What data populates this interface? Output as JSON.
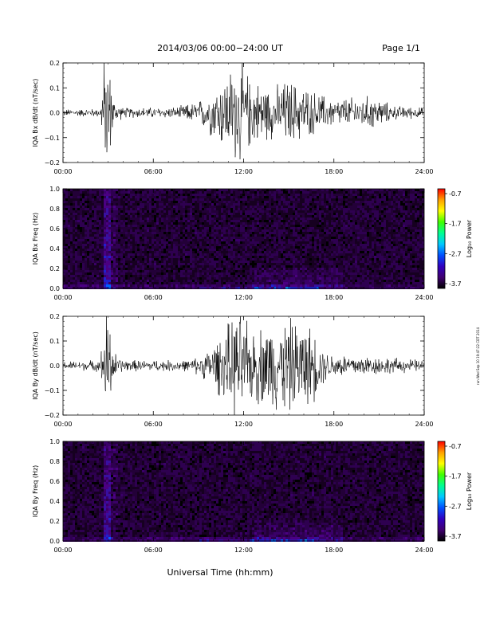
{
  "header": {
    "title": "2014/03/06  00:00−24:00 UT",
    "page": "Page 1/1"
  },
  "footer": {
    "xlabel": "Universal Time (hh:mm)"
  },
  "side_stamp": "run Wed Sep 10 19:47:22 CDT 2014",
  "colorbar": {
    "label": "Log₁₀ Power",
    "ticks": [
      "-0.7",
      "-1.7",
      "-2.7",
      "-3.7"
    ],
    "colors": [
      "#ff0000",
      "#ffa000",
      "#ffff00",
      "#40ff00",
      "#00ff90",
      "#00c8ff",
      "#0050ff",
      "#3000c0",
      "#400070",
      "#000000"
    ]
  },
  "chart_data": [
    {
      "type": "line",
      "ylabel": "IQA Bx dB/dt (nT/sec)",
      "ylim": [
        -0.2,
        0.2
      ],
      "yticks": [
        "0.2",
        "0.1",
        "0.0",
        "−0.1",
        "−0.2"
      ],
      "xlim": [
        "00:00",
        "24:00"
      ],
      "xticks": [
        "00:00",
        "06:00",
        "12:00",
        "18:00",
        "24:00"
      ],
      "series_color": "#000000",
      "envelope": [
        {
          "t": 0,
          "amp": 0.012
        },
        {
          "t": 2.5,
          "amp": 0.015
        },
        {
          "t": 2.7,
          "amp": 0.2
        },
        {
          "t": 3.0,
          "amp": 0.2
        },
        {
          "t": 3.4,
          "amp": 0.04
        },
        {
          "t": 4.0,
          "amp": 0.018
        },
        {
          "t": 7.5,
          "amp": 0.02
        },
        {
          "t": 9.0,
          "amp": 0.04
        },
        {
          "t": 10.0,
          "amp": 0.09
        },
        {
          "t": 10.8,
          "amp": 0.14
        },
        {
          "t": 11.7,
          "amp": 0.19
        },
        {
          "t": 12.5,
          "amp": 0.12
        },
        {
          "t": 14.0,
          "amp": 0.09
        },
        {
          "t": 15.0,
          "amp": 0.12
        },
        {
          "t": 16.5,
          "amp": 0.08
        },
        {
          "t": 18.0,
          "amp": 0.05
        },
        {
          "t": 20.5,
          "amp": 0.06
        },
        {
          "t": 22.0,
          "amp": 0.025
        },
        {
          "t": 24.0,
          "amp": 0.018
        }
      ]
    },
    {
      "type": "heatmap",
      "ylabel": "IQA Bx Freq (Hz)",
      "ylim": [
        0.0,
        1.0
      ],
      "yticks": [
        "1.0",
        "0.8",
        "0.6",
        "0.4",
        "0.2",
        "0.0"
      ],
      "xlim": [
        "00:00",
        "24:00"
      ],
      "xticks": [
        "00:00",
        "06:00",
        "12:00",
        "18:00",
        "24:00"
      ],
      "zlim": [
        -3.7,
        -0.7
      ],
      "zlabel": "Log₁₀ Power"
    },
    {
      "type": "line",
      "ylabel": "IQA By dB/dt (nT/sec)",
      "ylim": [
        -0.2,
        0.2
      ],
      "yticks": [
        "0.2",
        "0.1",
        "0.0",
        "−0.1",
        "−0.2"
      ],
      "xlim": [
        "00:00",
        "24:00"
      ],
      "xticks": [
        "00:00",
        "06:00",
        "12:00",
        "18:00",
        "24:00"
      ],
      "series_color": "#000000",
      "envelope": [
        {
          "t": 0,
          "amp": 0.015
        },
        {
          "t": 2.5,
          "amp": 0.02
        },
        {
          "t": 2.7,
          "amp": 0.2
        },
        {
          "t": 3.0,
          "amp": 0.2
        },
        {
          "t": 3.4,
          "amp": 0.05
        },
        {
          "t": 4.0,
          "amp": 0.02
        },
        {
          "t": 8.5,
          "amp": 0.02
        },
        {
          "t": 9.5,
          "amp": 0.05
        },
        {
          "t": 10.5,
          "amp": 0.11
        },
        {
          "t": 11.7,
          "amp": 0.2
        },
        {
          "t": 12.5,
          "amp": 0.13
        },
        {
          "t": 14.0,
          "amp": 0.16
        },
        {
          "t": 15.0,
          "amp": 0.17
        },
        {
          "t": 16.5,
          "amp": 0.14
        },
        {
          "t": 17.5,
          "amp": 0.05
        },
        {
          "t": 19.0,
          "amp": 0.04
        },
        {
          "t": 24.0,
          "amp": 0.02
        }
      ]
    },
    {
      "type": "heatmap",
      "ylabel": "IQA By Freq (Hz)",
      "ylim": [
        0.0,
        1.0
      ],
      "yticks": [
        "1.0",
        "0.8",
        "0.6",
        "0.4",
        "0.2",
        "0.0"
      ],
      "xlim": [
        "00:00",
        "24:00"
      ],
      "xticks": [
        "00:00",
        "06:00",
        "12:00",
        "18:00",
        "24:00"
      ],
      "zlim": [
        -3.7,
        -0.7
      ],
      "zlabel": "Log₁₀ Power"
    }
  ]
}
